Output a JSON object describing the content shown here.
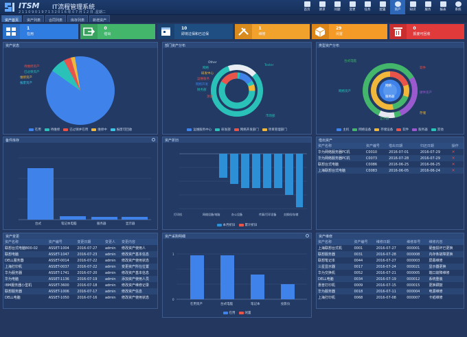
{
  "header": {
    "brand": "ITSM",
    "title": "IT流程管理系统",
    "subinfo": "2 1 1 0 9 0 1 9 7 1 3  2 0 1 6 年 0 7 月 1 2 日 ,星期二"
  },
  "nav": [
    {
      "label": "首页"
    },
    {
      "label": "请求"
    },
    {
      "label": "问题"
    },
    {
      "label": "变更"
    },
    {
      "label": "任务"
    },
    {
      "label": "配置"
    },
    {
      "label": "资产"
    },
    {
      "label": "知识"
    },
    {
      "label": "服务"
    },
    {
      "label": "报表"
    },
    {
      "label": "系统"
    }
  ],
  "tabs": [
    {
      "label": "资产首页"
    },
    {
      "label": "资产列表"
    },
    {
      "label": "合同列表"
    },
    {
      "label": "库存列表"
    },
    {
      "label": "新增资产"
    }
  ],
  "stats": [
    {
      "value": "1",
      "label": "在用",
      "color": "#2f7de0",
      "icon": "grid-icon"
    },
    {
      "value": "0",
      "label": "借出",
      "color": "#43b66b",
      "icon": "export-icon"
    },
    {
      "value": "10",
      "label": "即将过保和已过保",
      "color": "#1f4e82",
      "icon": "calendar-icon"
    },
    {
      "value": "1",
      "label": "维修",
      "color": "#f0a22d",
      "icon": "tools-icon"
    },
    {
      "value": "29",
      "label": "闲置",
      "color": "#f39a27",
      "icon": "box-icon"
    },
    {
      "value": "0",
      "label": "报废可回收",
      "color": "#e03a3a",
      "icon": "trash-icon"
    }
  ],
  "panels": {
    "p1": "资产状态",
    "p2": "部门资产分布",
    "p3": "类型资产分布",
    "p4": "备件库存",
    "p5": "资产折旧",
    "p6": "借出资产",
    "p7": "资产变更",
    "p8": "资产采购明细",
    "p9": "资产维修"
  },
  "charts": [
    {
      "type": "pie",
      "legend": [
        {
          "name": "在用",
          "color": "#3f83ea"
        },
        {
          "name": "待维修",
          "color": "#2ac2b8"
        },
        {
          "name": "已过保并在用",
          "color": "#e8534a"
        },
        {
          "name": "维修中",
          "color": "#f0b73b"
        },
        {
          "name": "报废可回收",
          "color": "#38c6e6"
        }
      ]
    },
    {
      "type": "donut",
      "legend": [
        {
          "name": "运维服务中心",
          "color": "#3f83ea"
        },
        {
          "name": "研发部",
          "color": "#2ac2b8"
        },
        {
          "name": "网络开发部门",
          "color": "#e8534a"
        },
        {
          "name": "项目管理部门",
          "color": "#f0b73b"
        }
      ]
    },
    {
      "type": "donut"
    },
    {
      "type": "bar",
      "categories": [
        "台式",
        "笔记本电脑",
        "服务器",
        "显示器"
      ],
      "values": [
        26,
        1,
        1,
        1
      ]
    },
    {
      "type": "bar",
      "categories": [
        "打印机",
        "网络设备/电脑",
        "办公设备",
        "传真/打印设备",
        "交换机/存储"
      ],
      "legend": [
        {
          "name": "本月折旧",
          "color": "#2d8fd6"
        },
        {
          "name": "累计折旧",
          "color": "#e8534a"
        }
      ]
    },
    {
      "type": "bar",
      "categories": [
        "在用资产",
        "台式电脑",
        "笔记本",
        "投影仪"
      ],
      "ylim": [
        0,
        1
      ],
      "legend": [
        {
          "name": "在用",
          "color": "#3f83ea"
        },
        {
          "name": "闲置",
          "color": "#e8534a"
        }
      ]
    }
  ],
  "p1": {
    "labels": [
      {
        "t": "待维修资产"
      },
      {
        "t": "已过保资产"
      },
      {
        "t": "维修资产"
      },
      {
        "t": "报废资产"
      }
    ]
  },
  "p2": {
    "labels": [
      {
        "t": "Tester"
      },
      {
        "t": "Other"
      },
      {
        "t": "网络"
      },
      {
        "t": "研发中心"
      },
      {
        "t": "运维服务"
      },
      {
        "t": "网络开发"
      },
      {
        "t": "财务部"
      },
      {
        "t": "测试"
      },
      {
        "t": "市场部"
      }
    ]
  },
  "p3": {
    "labels": [
      {
        "t": "网络"
      },
      {
        "t": "台式电脑"
      },
      {
        "t": "网络资产"
      },
      {
        "t": "服务器"
      },
      {
        "t": "硬件资产"
      },
      {
        "t": "软件"
      },
      {
        "t": "显示器"
      },
      {
        "t": "存储"
      }
    ],
    "legend": [
      "主机",
      "网络设备",
      "存储设备",
      "软件",
      "服务器",
      "其他"
    ]
  },
  "p4": {
    "cats": [
      "台式",
      "笔记本电脑",
      "服务器",
      "显示器"
    ]
  },
  "p5": {
    "cats": [
      "打印机",
      "网络设备/电脑",
      "办公设备",
      "传真/打印设备",
      "交换机/存储"
    ],
    "legend": [
      "本月折旧",
      "累计折旧"
    ]
  },
  "borrow": {
    "cols": [
      "资产名称",
      "资产编号",
      "借出日期",
      "归还日期",
      "操作"
    ],
    "rows": [
      {
        "a": "华为网络服务器PC机",
        "b": "C0010",
        "c": "2016-07-01",
        "d": "2016-07-29"
      },
      {
        "a": "华为网络服务器PC机",
        "b": "C0073",
        "c": "2016-07-28",
        "d": "2016-07-29"
      },
      {
        "a": "联想台式电脑",
        "b": "C0086",
        "c": "2016-06-25",
        "d": "2016-06-25"
      },
      {
        "a": "上海联想台式电脑",
        "b": "C0083",
        "c": "2016-06-05",
        "d": "2016-06-24"
      }
    ]
  },
  "change": {
    "cols": [
      "资产名称",
      "资产编号",
      "变更日期",
      "变更人",
      "变更内容"
    ],
    "rows": [
      {
        "a": "联想台式电脑B00-02",
        "b": "ASSET-1004",
        "c": "2016-07-27",
        "d": "admin",
        "e": "修改资产使用人"
      },
      {
        "a": "联想电脑",
        "b": "ASSET-1047",
        "c": "2016-07-23",
        "d": "admin",
        "e": "修改资产基本信息"
      },
      {
        "a": "DELL服务器",
        "b": "ASSET-0014",
        "c": "2016-07-22",
        "d": "admin",
        "e": "修改资产使用状态"
      },
      {
        "a": "上海打印机",
        "b": "ASSET-0037",
        "c": "2016-07-22",
        "d": "admin",
        "e": "变更资产所在位置"
      },
      {
        "a": "华为服务器",
        "b": "ASSET-1741",
        "c": "2016-07-20",
        "d": "admin",
        "e": "修改资产基本信息"
      },
      {
        "a": "华为电脑",
        "b": "ASSET-1136",
        "c": "2016-07-19",
        "d": "admin",
        "e": "添加资产使用人员"
      },
      {
        "a": "IBM服务器小型机",
        "b": "ASSET-3600",
        "c": "2016-07-18",
        "d": "admin",
        "e": "修改资产维修记录"
      },
      {
        "a": "联想服务器",
        "b": "ASSET-1006",
        "c": "2016-07-17",
        "d": "admin",
        "e": "修改资产信息"
      },
      {
        "a": "DELL电脑",
        "b": "ASSET-1050",
        "c": "2016-07-16",
        "d": "admin",
        "e": "修改资产使用状态"
      }
    ]
  },
  "repair": {
    "cols": [
      "资产名称",
      "资产编号",
      "维修日期",
      "维修单号",
      "维修内容"
    ],
    "rows": [
      {
        "a": "上海联想台式机",
        "b": "0001",
        "c": "2016-07-27",
        "d": "000001",
        "e": "硬盘损坏已更换"
      },
      {
        "a": "联想服务器",
        "b": "0031",
        "c": "2016-07-28",
        "d": "000008",
        "e": "内存条故障更换"
      },
      {
        "a": "联想笔记本",
        "b": "0044",
        "c": "2016-07-27",
        "d": "000003",
        "e": "屏幕维修"
      },
      {
        "a": "三星显示器",
        "b": "0017",
        "c": "2016-07-24",
        "d": "000021",
        "e": "显示器更换"
      },
      {
        "a": "华为交换机",
        "b": "0052",
        "c": "2016-07-21",
        "d": "000005",
        "e": "端口故障维修"
      },
      {
        "a": "DELL电脑",
        "b": "0034",
        "c": "2016-07-19",
        "d": "000012",
        "e": "系统重装"
      },
      {
        "a": "惠普打印机",
        "b": "0009",
        "c": "2016-07-15",
        "d": "000015",
        "e": "更换硒鼓"
      },
      {
        "a": "华为服务器",
        "b": "0018",
        "c": "2016-07-11",
        "d": "000004",
        "e": "电源维修"
      },
      {
        "a": "上海打印机",
        "b": "0068",
        "c": "2016-07-08",
        "d": "000007",
        "e": "卡纸维修"
      }
    ]
  }
}
